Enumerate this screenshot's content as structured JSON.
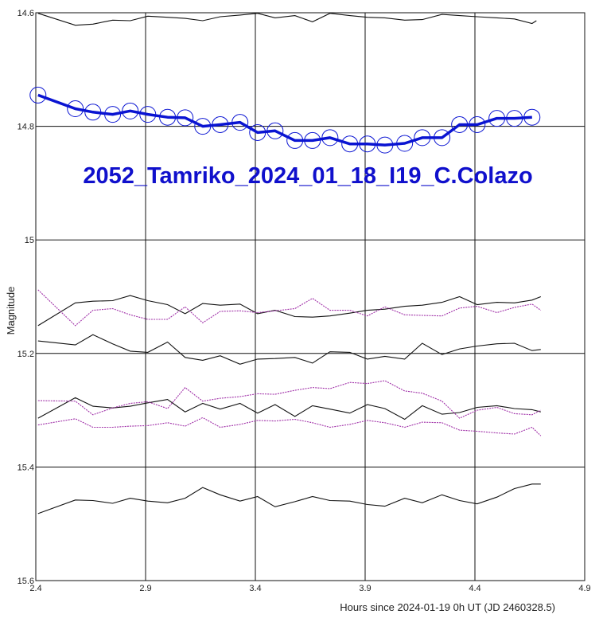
{
  "chart_data": {
    "type": "line",
    "title": "2052_Tamriko_2024_01_18_I19_C.Colazo",
    "xlabel": "Hours since 2024-01-19 0h UT (JD 2460328.5)",
    "ylabel": "Magnitude",
    "xlim": [
      2.4,
      4.9
    ],
    "ylim": [
      14.6,
      15.6
    ],
    "y_inverted": true,
    "grid": true,
    "x_ticks": [
      "2.4",
      "2.9",
      "3.4",
      "3.9",
      "4.4",
      "4.9"
    ],
    "y_ticks": [
      "14.6",
      "14.8",
      "15",
      "15.2",
      "15.4",
      "15.6"
    ],
    "colors": {
      "target": "#0a14d2",
      "comparison": "#111111",
      "check": "#a030a8",
      "grid": "#111111"
    },
    "target": {
      "x": [
        2.41,
        2.58,
        2.66,
        2.75,
        2.83,
        2.91,
        3.0,
        3.08,
        3.16,
        3.24,
        3.33,
        3.41,
        3.49,
        3.58,
        3.66,
        3.74,
        3.83,
        3.91,
        3.99,
        4.08,
        4.16,
        4.25,
        4.33,
        4.41,
        4.5,
        4.58,
        4.66
      ],
      "y": [
        14.745,
        14.769,
        14.775,
        14.779,
        14.773,
        14.779,
        14.784,
        14.785,
        14.8,
        14.797,
        14.793,
        14.811,
        14.808,
        14.825,
        14.825,
        14.82,
        14.831,
        14.831,
        14.833,
        14.83,
        14.82,
        14.82,
        14.797,
        14.797,
        14.786,
        14.786,
        14.784
      ]
    },
    "comparison_series": [
      {
        "x": [
          2.41,
          2.58,
          2.66,
          2.75,
          2.83,
          2.91,
          3.0,
          3.08,
          3.16,
          3.24,
          3.33,
          3.41,
          3.49,
          3.58,
          3.66,
          3.74,
          3.83,
          3.91,
          3.99,
          4.08,
          4.16,
          4.25,
          4.33,
          4.41,
          4.5,
          4.58,
          4.66,
          4.68
        ],
        "y": [
          14.601,
          14.622,
          14.62,
          14.613,
          14.614,
          14.606,
          14.608,
          14.61,
          14.614,
          14.607,
          14.604,
          14.601,
          14.609,
          14.605,
          14.616,
          14.601,
          14.605,
          14.608,
          14.609,
          14.613,
          14.612,
          14.603,
          14.605,
          14.607,
          14.609,
          14.611,
          14.619,
          14.614
        ]
      },
      {
        "x": [
          2.41,
          2.58,
          2.66,
          2.75,
          2.83,
          2.91,
          3.0,
          3.08,
          3.16,
          3.24,
          3.33,
          3.41,
          3.49,
          3.58,
          3.66,
          3.74,
          3.83,
          3.91,
          3.99,
          4.08,
          4.16,
          4.25,
          4.33,
          4.41,
          4.5,
          4.58,
          4.66,
          4.7
        ],
        "y": [
          15.151,
          15.111,
          15.108,
          15.107,
          15.098,
          15.107,
          15.114,
          15.13,
          15.112,
          15.115,
          15.113,
          15.13,
          15.124,
          15.135,
          15.136,
          15.134,
          15.129,
          15.124,
          15.122,
          15.117,
          15.115,
          15.11,
          15.1,
          15.114,
          15.11,
          15.111,
          15.106,
          15.1
        ]
      },
      {
        "x": [
          2.41,
          2.58,
          2.66,
          2.75,
          2.83,
          2.91,
          3.0,
          3.08,
          3.16,
          3.24,
          3.33,
          3.41,
          3.49,
          3.58,
          3.66,
          3.74,
          3.83,
          3.91,
          3.99,
          4.08,
          4.16,
          4.25,
          4.33,
          4.41,
          4.5,
          4.58,
          4.66,
          4.7
        ],
        "y": [
          15.178,
          15.185,
          15.167,
          15.183,
          15.196,
          15.198,
          15.18,
          15.207,
          15.212,
          15.204,
          15.219,
          15.21,
          15.209,
          15.207,
          15.217,
          15.197,
          15.198,
          15.21,
          15.205,
          15.21,
          15.182,
          15.202,
          15.192,
          15.187,
          15.183,
          15.182,
          15.195,
          15.193
        ]
      },
      {
        "x": [
          2.41,
          2.58,
          2.66,
          2.75,
          2.83,
          2.91,
          3.0,
          3.08,
          3.16,
          3.24,
          3.33,
          3.41,
          3.49,
          3.58,
          3.66,
          3.74,
          3.83,
          3.91,
          3.99,
          4.08,
          4.16,
          4.25,
          4.33,
          4.41,
          4.5,
          4.58,
          4.66,
          4.7
        ],
        "y": [
          15.314,
          15.278,
          15.293,
          15.296,
          15.293,
          15.287,
          15.281,
          15.303,
          15.288,
          15.298,
          15.288,
          15.305,
          15.29,
          15.311,
          15.292,
          15.298,
          15.305,
          15.29,
          15.297,
          15.316,
          15.292,
          15.307,
          15.304,
          15.295,
          15.292,
          15.297,
          15.299,
          15.303
        ]
      },
      {
        "x": [
          2.41,
          2.58,
          2.66,
          2.75,
          2.83,
          2.91,
          3.0,
          3.08,
          3.16,
          3.24,
          3.33,
          3.41,
          3.49,
          3.58,
          3.66,
          3.74,
          3.83,
          3.91,
          3.99,
          4.08,
          4.16,
          4.25,
          4.33,
          4.41,
          4.5,
          4.58,
          4.66,
          4.7
        ],
        "y": [
          15.482,
          15.458,
          15.459,
          15.464,
          15.455,
          15.46,
          15.463,
          15.455,
          15.436,
          15.449,
          15.46,
          15.452,
          15.47,
          15.461,
          15.452,
          15.459,
          15.46,
          15.466,
          15.469,
          15.455,
          15.463,
          15.449,
          15.459,
          15.465,
          15.453,
          15.438,
          15.43,
          15.43
        ]
      }
    ],
    "check_series": [
      {
        "x": [
          2.41,
          2.58,
          2.66,
          2.75,
          2.83,
          2.91,
          3.0,
          3.08,
          3.16,
          3.24,
          3.33,
          3.41,
          3.49,
          3.58,
          3.66,
          3.74,
          3.83,
          3.91,
          3.99,
          4.08,
          4.16,
          4.25,
          4.33,
          4.41,
          4.5,
          4.58,
          4.66,
          4.7
        ],
        "y": [
          15.088,
          15.151,
          15.124,
          15.121,
          15.132,
          15.14,
          15.14,
          15.118,
          15.146,
          15.126,
          15.125,
          15.128,
          15.125,
          15.121,
          15.103,
          15.124,
          15.124,
          15.134,
          15.118,
          15.132,
          15.133,
          15.134,
          15.12,
          15.117,
          15.128,
          15.119,
          15.113,
          15.124
        ]
      },
      {
        "x": [
          2.41,
          2.58,
          2.66,
          2.75,
          2.83,
          2.91,
          3.0,
          3.08,
          3.16,
          3.24,
          3.33,
          3.41,
          3.49,
          3.58,
          3.66,
          3.74,
          3.83,
          3.91,
          3.99,
          4.08,
          4.16,
          4.25,
          4.33,
          4.41,
          4.5,
          4.58,
          4.66,
          4.7
        ],
        "y": [
          15.283,
          15.284,
          15.308,
          15.296,
          15.288,
          15.285,
          15.297,
          15.26,
          15.284,
          15.279,
          15.276,
          15.271,
          15.272,
          15.265,
          15.26,
          15.262,
          15.251,
          15.253,
          15.248,
          15.266,
          15.27,
          15.284,
          15.314,
          15.3,
          15.295,
          15.306,
          15.308,
          15.3
        ]
      },
      {
        "x": [
          2.41,
          2.58,
          2.66,
          2.75,
          2.83,
          2.91,
          3.0,
          3.08,
          3.16,
          3.24,
          3.33,
          3.41,
          3.49,
          3.58,
          3.66,
          3.74,
          3.83,
          3.91,
          3.99,
          4.08,
          4.16,
          4.25,
          4.33,
          4.41,
          4.5,
          4.58,
          4.66,
          4.7
        ],
        "y": [
          15.326,
          15.315,
          15.33,
          15.33,
          15.328,
          15.327,
          15.322,
          15.328,
          15.313,
          15.33,
          15.325,
          15.318,
          15.319,
          15.316,
          15.322,
          15.33,
          15.325,
          15.318,
          15.322,
          15.33,
          15.321,
          15.322,
          15.335,
          15.337,
          15.34,
          15.342,
          15.33,
          15.345
        ]
      }
    ]
  }
}
